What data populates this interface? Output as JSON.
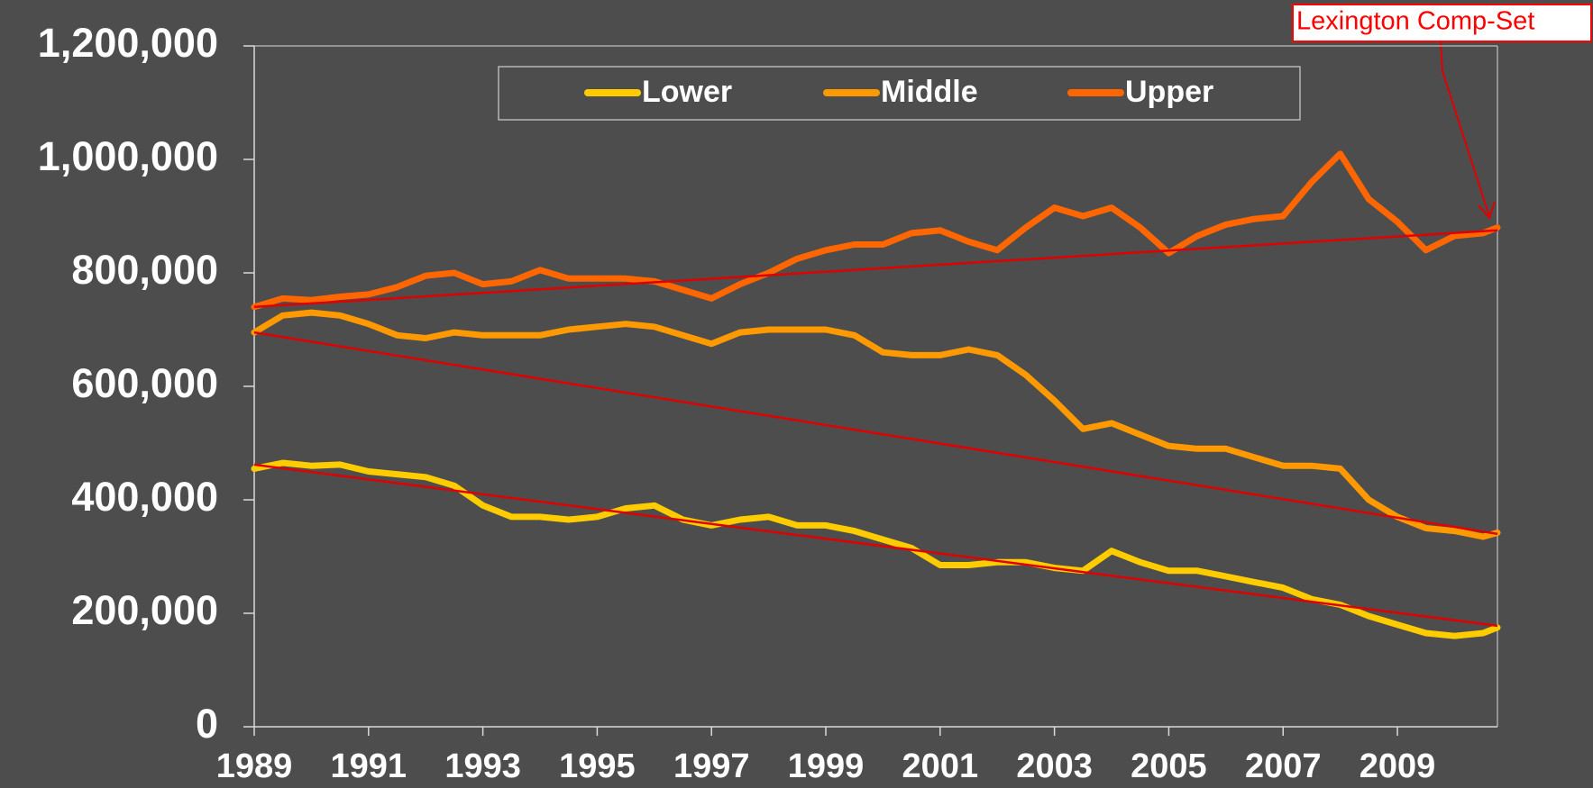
{
  "chart_data": {
    "type": "line",
    "x": [
      1989,
      1989.5,
      1990,
      1990.5,
      1991,
      1991.5,
      1992,
      1992.5,
      1993,
      1993.5,
      1994,
      1994.5,
      1995,
      1995.5,
      1996,
      1996.5,
      1997,
      1997.5,
      1998,
      1998.5,
      1999,
      1999.5,
      2000,
      2000.5,
      2001,
      2001.5,
      2002,
      2002.5,
      2003,
      2003.5,
      2004,
      2004.5,
      2005,
      2005.5,
      2006,
      2006.5,
      2007,
      2007.5,
      2008,
      2008.5,
      2009,
      2009.5,
      2010,
      2010.5,
      2010.75
    ],
    "series": [
      {
        "name": "Lower",
        "color": "#ffcc00",
        "values": [
          455000,
          465000,
          460000,
          462000,
          450000,
          445000,
          440000,
          425000,
          390000,
          370000,
          370000,
          365000,
          370000,
          385000,
          390000,
          365000,
          355000,
          365000,
          370000,
          355000,
          355000,
          345000,
          330000,
          315000,
          285000,
          285000,
          290000,
          290000,
          280000,
          275000,
          310000,
          290000,
          275000,
          275000,
          265000,
          255000,
          245000,
          225000,
          215000,
          195000,
          180000,
          165000,
          160000,
          165000,
          175000
        ]
      },
      {
        "name": "Middle",
        "color": "#ff9900",
        "values": [
          695000,
          725000,
          730000,
          725000,
          710000,
          690000,
          685000,
          695000,
          690000,
          690000,
          690000,
          700000,
          705000,
          710000,
          705000,
          690000,
          675000,
          695000,
          700000,
          700000,
          700000,
          690000,
          660000,
          655000,
          655000,
          665000,
          655000,
          620000,
          575000,
          525000,
          535000,
          515000,
          495000,
          490000,
          490000,
          475000,
          460000,
          460000,
          455000,
          400000,
          370000,
          350000,
          345000,
          335000,
          342000
        ]
      },
      {
        "name": "Upper",
        "color": "#ff6600",
        "values": [
          740000,
          755000,
          752000,
          758000,
          762000,
          775000,
          795000,
          800000,
          780000,
          785000,
          805000,
          790000,
          790000,
          790000,
          785000,
          770000,
          755000,
          780000,
          800000,
          825000,
          840000,
          850000,
          850000,
          870000,
          875000,
          855000,
          840000,
          880000,
          915000,
          900000,
          915000,
          880000,
          835000,
          865000,
          885000,
          895000,
          900000,
          960000,
          1010000,
          930000,
          890000,
          840000,
          865000,
          870000,
          880000
        ]
      }
    ],
    "trendlines": {
      "color": "#e00000",
      "x": [
        1989,
        2010.75
      ],
      "lines": [
        [
          462000,
          178000
        ],
        [
          695000,
          340000
        ],
        [
          740000,
          875000
        ]
      ]
    },
    "annotation": {
      "text": "Lexington Comp-Set",
      "color": "#ff0000"
    },
    "xlim": [
      1989,
      2010.75
    ],
    "xticks": [
      1989,
      1991,
      1993,
      1995,
      1997,
      1999,
      2001,
      2003,
      2005,
      2007,
      2009
    ],
    "ylim": [
      0,
      1200000
    ],
    "yticks": [
      0,
      {
        "value": 200000,
        "label": "200,000"
      },
      {
        "value": 400000,
        "label": "400,000"
      },
      {
        "value": 600000,
        "label": "600,000"
      },
      {
        "value": 800000,
        "label": "800,000"
      },
      {
        "value": 1000000,
        "label": "1,000,000"
      },
      {
        "value": 1200000,
        "label": "1,200,000"
      }
    ],
    "grid": false
  }
}
